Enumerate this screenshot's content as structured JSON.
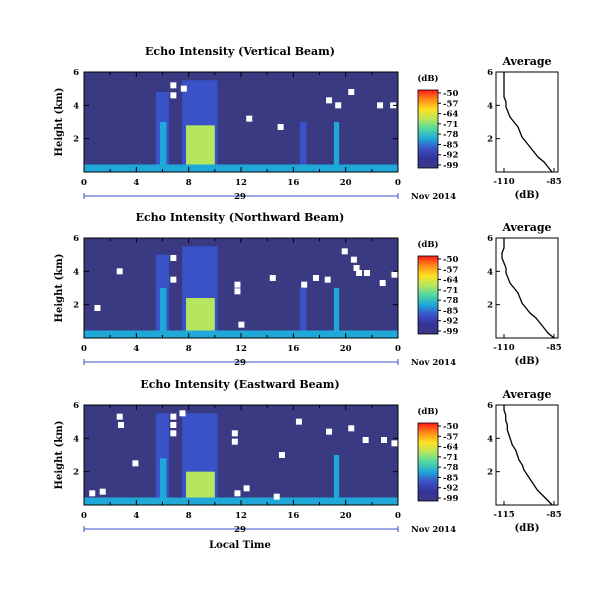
{
  "panels": [
    {
      "title": "Echo Intensity (Vertical Beam)",
      "beam": "vertical",
      "avg_xticks": [
        "-110",
        "-85"
      ],
      "avg_xlim": [
        -110,
        -85
      ],
      "avg_profile": [
        [
          0.0,
          -86
        ],
        [
          0.3,
          -88
        ],
        [
          0.6,
          -90
        ],
        [
          0.9,
          -93
        ],
        [
          1.2,
          -95
        ],
        [
          1.5,
          -97
        ],
        [
          1.8,
          -99
        ],
        [
          2.1,
          -101
        ],
        [
          2.4,
          -102
        ],
        [
          2.7,
          -103
        ],
        [
          3.0,
          -105
        ],
        [
          3.3,
          -107
        ],
        [
          3.6,
          -108
        ],
        [
          3.9,
          -109
        ],
        [
          4.2,
          -109
        ],
        [
          4.5,
          -110
        ],
        [
          4.8,
          -110
        ],
        [
          5.1,
          -110
        ],
        [
          5.4,
          -110
        ],
        [
          5.7,
          -110
        ],
        [
          6.0,
          -110
        ]
      ],
      "heatmap": {
        "layers": [
          {
            "tmin": 5.5,
            "tmax": 6.5,
            "hmax": 4.8,
            "level": "weak"
          },
          {
            "tmin": 7.5,
            "tmax": 10.2,
            "hmax": 5.5,
            "level": "weak"
          },
          {
            "tmin": 5.8,
            "tmax": 6.3,
            "hmax": 3.0,
            "level": "moderate"
          },
          {
            "tmin": 7.8,
            "tmax": 10.0,
            "hmax": 2.8,
            "level": "strong"
          },
          {
            "tmin": 16.5,
            "tmax": 17.0,
            "hmax": 3.0,
            "level": "weak"
          },
          {
            "tmin": 19.1,
            "tmax": 19.5,
            "hmax": 3.0,
            "level": "moderate"
          },
          {
            "tmin": 0,
            "tmax": 24,
            "hmax": 0.45,
            "level": "moderate"
          }
        ],
        "gaps": [
          [
            6.6,
            5.2
          ],
          [
            6.6,
            4.6
          ],
          [
            12.4,
            3.2
          ],
          [
            14.8,
            2.7
          ],
          [
            18.5,
            4.3
          ],
          [
            19.2,
            4.0
          ],
          [
            20.2,
            4.8
          ],
          [
            22.4,
            4.0
          ],
          [
            23.4,
            4.0
          ],
          [
            7.4,
            5.0
          ]
        ]
      }
    },
    {
      "title": "Echo Intensity (Northward Beam)",
      "beam": "northward",
      "avg_xticks": [
        "-110",
        "-85"
      ],
      "avg_xlim": [
        -110,
        -85
      ],
      "avg_profile": [
        [
          0.0,
          -85
        ],
        [
          0.3,
          -88
        ],
        [
          0.6,
          -90
        ],
        [
          0.9,
          -92
        ],
        [
          1.2,
          -94
        ],
        [
          1.5,
          -97
        ],
        [
          1.8,
          -99
        ],
        [
          2.1,
          -101
        ],
        [
          2.4,
          -102
        ],
        [
          2.7,
          -103
        ],
        [
          3.0,
          -105
        ],
        [
          3.3,
          -107
        ],
        [
          3.6,
          -108
        ],
        [
          3.9,
          -109
        ],
        [
          4.2,
          -109
        ],
        [
          4.5,
          -110
        ],
        [
          4.8,
          -111
        ],
        [
          5.1,
          -111
        ],
        [
          5.4,
          -110
        ],
        [
          5.7,
          -110
        ],
        [
          6.0,
          -110
        ]
      ],
      "heatmap": {
        "layers": [
          {
            "tmin": 5.5,
            "tmax": 6.5,
            "hmax": 5.0,
            "level": "weak"
          },
          {
            "tmin": 7.5,
            "tmax": 10.2,
            "hmax": 5.5,
            "level": "weak"
          },
          {
            "tmin": 5.8,
            "tmax": 6.3,
            "hmax": 3.0,
            "level": "moderate"
          },
          {
            "tmin": 7.8,
            "tmax": 10.0,
            "hmax": 2.4,
            "level": "strong"
          },
          {
            "tmin": 16.5,
            "tmax": 17.0,
            "hmax": 3.0,
            "level": "weak"
          },
          {
            "tmin": 19.1,
            "tmax": 19.5,
            "hmax": 3.0,
            "level": "moderate"
          },
          {
            "tmin": 0,
            "tmax": 24,
            "hmax": 0.45,
            "level": "moderate"
          }
        ],
        "gaps": [
          [
            2.5,
            4.0
          ],
          [
            0.8,
            1.8
          ],
          [
            6.6,
            4.8
          ],
          [
            6.6,
            3.5
          ],
          [
            11.5,
            3.2
          ],
          [
            11.5,
            2.8
          ],
          [
            14.2,
            3.6
          ],
          [
            16.6,
            3.2
          ],
          [
            17.5,
            3.6
          ],
          [
            18.4,
            3.5
          ],
          [
            19.7,
            5.2
          ],
          [
            20.4,
            4.7
          ],
          [
            20.8,
            3.9
          ],
          [
            20.6,
            4.2
          ],
          [
            21.4,
            3.9
          ],
          [
            22.6,
            3.3
          ],
          [
            23.5,
            3.8
          ],
          [
            11.8,
            0.8
          ]
        ]
      }
    },
    {
      "title": "Echo Intensity (Eastward Beam)",
      "beam": "eastward",
      "avg_xticks": [
        "-115",
        "-85"
      ],
      "avg_xlim": [
        -115,
        -85
      ],
      "avg_profile": [
        [
          0.0,
          -86
        ],
        [
          0.3,
          -89
        ],
        [
          0.6,
          -92
        ],
        [
          0.9,
          -95
        ],
        [
          1.2,
          -97
        ],
        [
          1.5,
          -99
        ],
        [
          1.8,
          -101
        ],
        [
          2.1,
          -103
        ],
        [
          2.4,
          -104
        ],
        [
          2.7,
          -106
        ],
        [
          3.0,
          -107
        ],
        [
          3.3,
          -108
        ],
        [
          3.6,
          -110
        ],
        [
          3.9,
          -111
        ],
        [
          4.2,
          -112
        ],
        [
          4.5,
          -113
        ],
        [
          4.8,
          -113
        ],
        [
          5.1,
          -114
        ],
        [
          5.4,
          -114
        ],
        [
          5.7,
          -115
        ],
        [
          6.0,
          -115
        ]
      ],
      "heatmap": {
        "layers": [
          {
            "tmin": 5.5,
            "tmax": 6.5,
            "hmax": 5.5,
            "level": "weak"
          },
          {
            "tmin": 7.5,
            "tmax": 10.2,
            "hmax": 5.5,
            "level": "weak"
          },
          {
            "tmin": 5.8,
            "tmax": 6.3,
            "hmax": 2.8,
            "level": "moderate"
          },
          {
            "tmin": 7.8,
            "tmax": 10.0,
            "hmax": 2.0,
            "level": "strong"
          },
          {
            "tmin": 19.1,
            "tmax": 19.5,
            "hmax": 3.0,
            "level": "moderate"
          },
          {
            "tmin": 0,
            "tmax": 24,
            "hmax": 0.45,
            "level": "moderate"
          }
        ],
        "gaps": [
          [
            0.4,
            0.7
          ],
          [
            1.2,
            0.8
          ],
          [
            2.5,
            5.3
          ],
          [
            2.6,
            4.8
          ],
          [
            3.7,
            2.5
          ],
          [
            6.6,
            5.3
          ],
          [
            6.6,
            4.8
          ],
          [
            6.6,
            4.3
          ],
          [
            7.3,
            5.5
          ],
          [
            11.3,
            4.3
          ],
          [
            11.3,
            3.8
          ],
          [
            11.5,
            0.7
          ],
          [
            12.2,
            1.0
          ],
          [
            14.9,
            3.0
          ],
          [
            16.2,
            5.0
          ],
          [
            18.5,
            4.4
          ],
          [
            20.2,
            4.6
          ],
          [
            21.3,
            3.9
          ],
          [
            22.7,
            3.9
          ],
          [
            23.5,
            3.7
          ],
          [
            14.5,
            0.5
          ]
        ]
      }
    }
  ],
  "ytick_labels": [
    "6",
    "4",
    "2"
  ],
  "ylabel": "Height (km)",
  "xtick_labels": [
    "0",
    "4",
    "8",
    "12",
    "16",
    "20",
    "0"
  ],
  "date_day": "29",
  "date_label": "Nov 2014",
  "xlabel": "Local Time",
  "colorbar_unit": "(dB)",
  "colorbar_ticks": [
    "-50",
    "-57",
    "-64",
    "-71",
    "-78",
    "-85",
    "-92",
    "-99"
  ],
  "avg_title": "Average",
  "avg_xlabel": "(dB)",
  "avg_yticks": [
    "6",
    "4",
    "2"
  ],
  "colors": {
    "background": "#3a3a82",
    "weak": "#3a52c8",
    "moderate": "#20a8d8",
    "strong": "#b6e660",
    "gap": "#ffffff",
    "colorbar": [
      "#ff1a1a",
      "#ff8c1a",
      "#ffe020",
      "#b6e660",
      "#50d8a0",
      "#20a8d8",
      "#3a52c8",
      "#36329a",
      "#3a3a82"
    ]
  },
  "chart_data": {
    "type": "heatmap",
    "subplots": [
      {
        "title": "Echo Intensity (Vertical Beam)",
        "xlabel": "Local Time",
        "ylabel": "Height (km)",
        "xlim": [
          0,
          24
        ],
        "ylim": [
          0,
          6
        ],
        "zlim": [
          -99,
          -50
        ],
        "zunit": "dB"
      },
      {
        "title": "Echo Intensity (Northward Beam)",
        "xlabel": "Local Time",
        "ylabel": "Height (km)",
        "xlim": [
          0,
          24
        ],
        "ylim": [
          0,
          6
        ],
        "zlim": [
          -99,
          -50
        ],
        "zunit": "dB"
      },
      {
        "title": "Echo Intensity (Eastward Beam)",
        "xlabel": "Local Time",
        "ylabel": "Height (km)",
        "xlim": [
          0,
          24
        ],
        "ylim": [
          0,
          6
        ],
        "zlim": [
          -99,
          -50
        ],
        "zunit": "dB"
      }
    ],
    "average_profiles": {
      "title": "Average",
      "xlabel": "(dB)",
      "ylim": [
        0,
        6
      ]
    }
  }
}
